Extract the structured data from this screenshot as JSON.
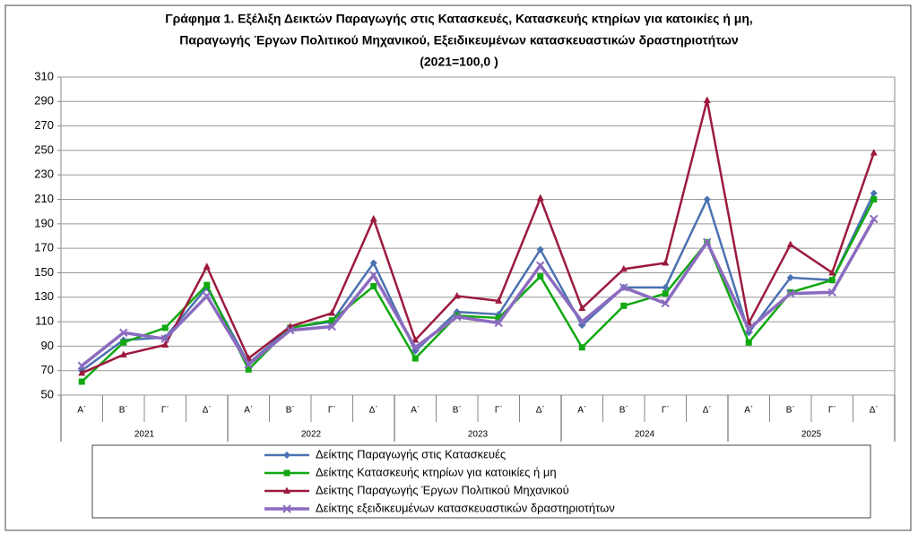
{
  "chart_data": {
    "type": "line",
    "title": [
      "Γράφημα 1. Εξέλιξη  Δεικτών Παραγωγής στις Κατασκευές,  Κατασκευής κτηρίων για κατοικίες ή  μη,",
      "Παραγωγής  Έργων Πολιτικού Μηχανικού,  Εξειδικευμένων κατασκευαστικών δραστηριοτήτων",
      "(2021=100,0 )"
    ],
    "categories": [
      "Α΄",
      "Β΄",
      "Γ΄",
      "Δ΄",
      "Α΄",
      "Β΄",
      "Γ΄",
      "Δ΄",
      "Α΄",
      "Β΄",
      "Γ΄",
      "Δ΄",
      "Α΄",
      "Β΄",
      "Γ΄",
      "Δ΄",
      "Α΄",
      "Β΄",
      "Γ΄",
      "Δ΄"
    ],
    "years": [
      "2021",
      "2022",
      "2023",
      "2024",
      "2025"
    ],
    "ylim": [
      50,
      310
    ],
    "yticks": [
      50,
      70,
      90,
      110,
      130,
      150,
      170,
      190,
      210,
      230,
      250,
      270,
      290,
      310
    ],
    "grid": true,
    "series": [
      {
        "name": "Δείκτης Παραγωγής στις Κατασκευές",
        "color": "#4a72b0",
        "marker": "diamond",
        "values": [
          70,
          95,
          97,
          138,
          76,
          105,
          110,
          158,
          86,
          118,
          116,
          169,
          107,
          138,
          138,
          210,
          101,
          146,
          144,
          215
        ]
      },
      {
        "name": "Δείκτης Κατασκευής κτηρίων για κατοικίες ή μη",
        "color": "#11a811",
        "marker": "square",
        "values": [
          61,
          93,
          105,
          140,
          71,
          105,
          111,
          139,
          80,
          115,
          113,
          147,
          89,
          123,
          133,
          175,
          93,
          134,
          144,
          210
        ]
      },
      {
        "name": "Δείκτης Παραγωγής Έργων Πολιτικού Μηχανικού",
        "color": "#9c1a3e",
        "marker": "triangle",
        "values": [
          68,
          83,
          91,
          155,
          80,
          106,
          117,
          194,
          95,
          131,
          127,
          211,
          121,
          153,
          158,
          291,
          109,
          173,
          150,
          248
        ]
      },
      {
        "name": "Δείκτης εξειδικευμένων κατασκευαστικών δραστηριοτήτων",
        "color": "#8b6bbf",
        "marker": "x",
        "values": [
          74,
          101,
          96,
          131,
          75,
          103,
          106,
          148,
          89,
          114,
          109,
          156,
          110,
          138,
          125,
          175,
          104,
          133,
          134,
          194
        ]
      }
    ]
  }
}
